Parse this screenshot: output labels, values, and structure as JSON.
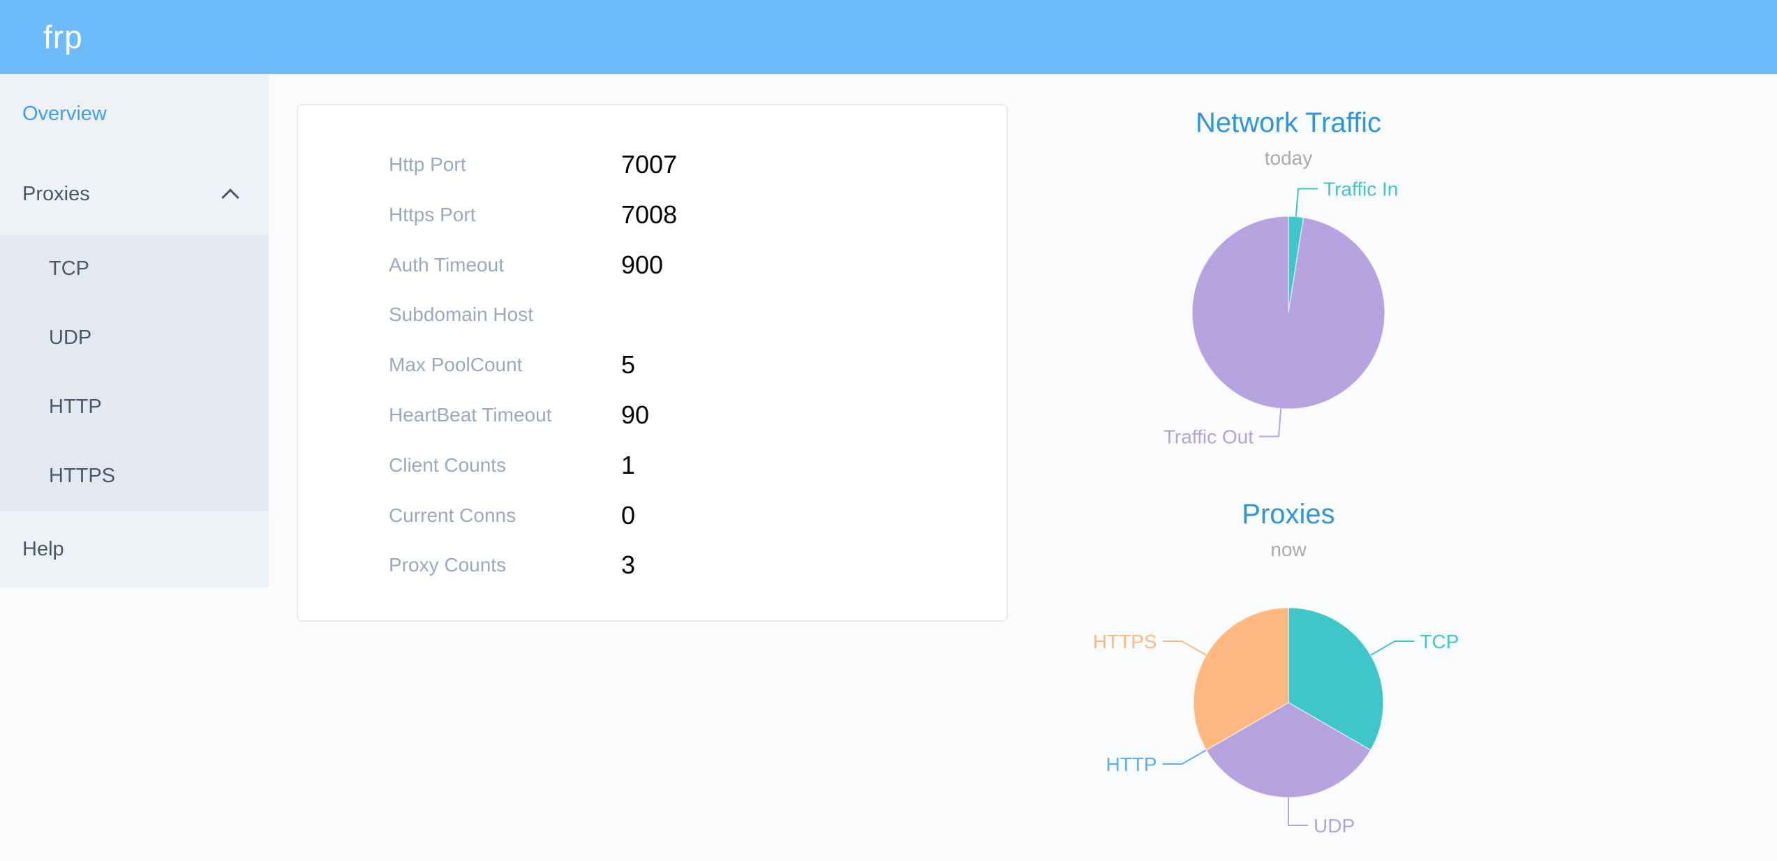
{
  "header": {
    "logo": "frp"
  },
  "sidebar": {
    "overview_label": "Overview",
    "proxies_label": "Proxies",
    "proxies_expand_icon": "chevron-up-icon",
    "submenu": [
      "TCP",
      "UDP",
      "HTTP",
      "HTTPS"
    ],
    "help_label": "Help",
    "active_item": "Overview",
    "active_color": "#3f9ef8",
    "text_color": "#48576a"
  },
  "panel": {
    "rows": [
      {
        "label": "Http Port",
        "value": "7007"
      },
      {
        "label": "Https Port",
        "value": "7008"
      },
      {
        "label": "Auth Timeout",
        "value": "900"
      },
      {
        "label": "Subdomain Host",
        "value": ""
      },
      {
        "label": "Max PoolCount",
        "value": "5"
      },
      {
        "label": "HeartBeat Timeout",
        "value": "90"
      },
      {
        "label": "Client Counts",
        "value": "1"
      },
      {
        "label": "Current Conns",
        "value": "0"
      },
      {
        "label": "Proxy Counts",
        "value": "3"
      }
    ]
  },
  "chart_data": [
    {
      "type": "pie",
      "title": "Network Traffic",
      "subtitle": "today",
      "labels": [
        "Traffic In",
        "Traffic Out"
      ],
      "values_percent": [
        2.5,
        97.5
      ],
      "colors": [
        "#3ec6c8",
        "#b6a2de"
      ],
      "start_angle_deg": 90,
      "clockwise": true,
      "label_position": "outside",
      "legend": "none"
    },
    {
      "type": "pie",
      "title": "Proxies",
      "subtitle": "now",
      "labels": [
        "TCP",
        "UDP",
        "HTTP",
        "HTTPS"
      ],
      "values": [
        1,
        1,
        0,
        1
      ],
      "colors": [
        "#3ec6c8",
        "#b6a2de",
        "#5ab1ef",
        "#ffb980"
      ],
      "start_angle_deg": 90,
      "clockwise": true,
      "label_position": "outside",
      "legend": "none"
    }
  ],
  "theme": {
    "header_bg": "#6ebbfc",
    "sidebar_bg": "#eef1f6",
    "submenu_bg": "#e4e8f1",
    "page_bg": "#fafbfc",
    "panel_label_color": "#99a9bf",
    "panel_value_color": "#000000",
    "chart_title_color": "#2e97d9",
    "chart_subtitle_color": "#aaaaaa"
  }
}
